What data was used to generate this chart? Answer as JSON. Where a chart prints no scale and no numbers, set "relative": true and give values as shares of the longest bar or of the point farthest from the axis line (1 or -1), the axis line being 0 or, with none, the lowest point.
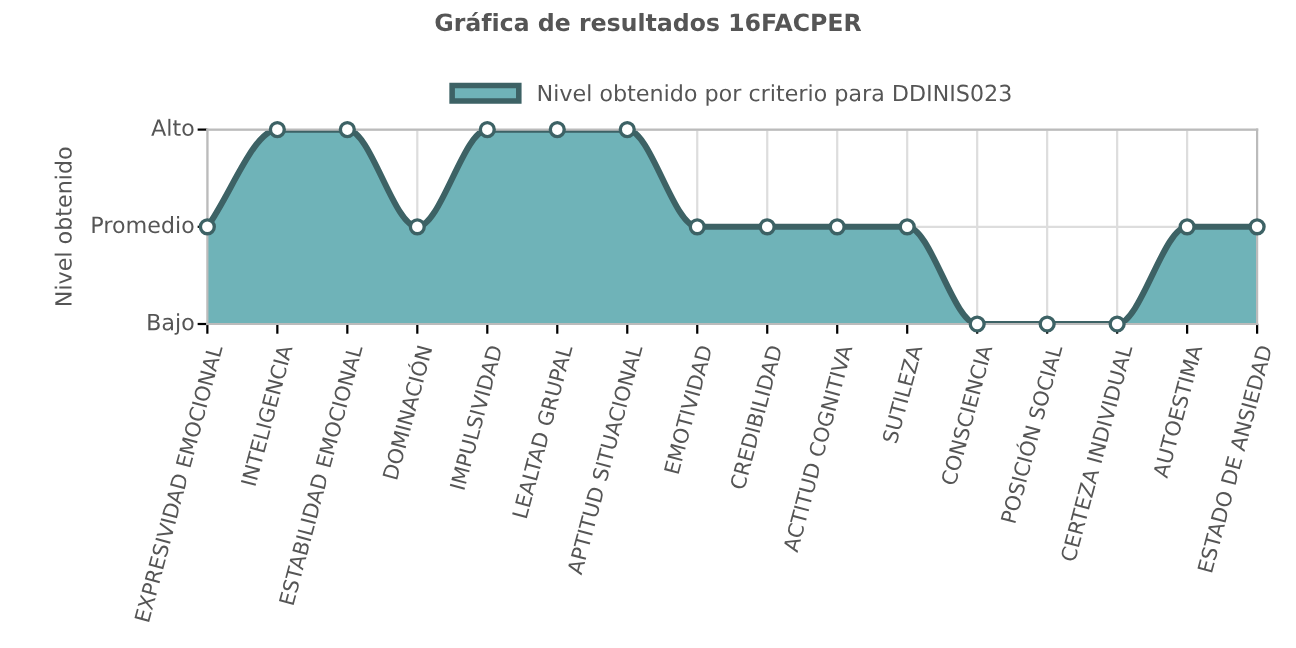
{
  "chart_data": {
    "type": "area",
    "title": "Gráfica de resultados 16FACPER",
    "ylabel": "Nivel obtenido",
    "categories": [
      "EXPRESIVIDAD EMOCIONAL",
      "INTELIGENCIA",
      "ESTABILIDAD EMOCIONAL",
      "DOMINACIÓN",
      "IMPULSIVIDAD",
      "LEALTAD GRUPAL",
      "APTITUD SITUACIONAL",
      "EMOTIVIDAD",
      "CREDIBILIDAD",
      "ACTITUD COGNITIVA",
      "SUTILEZA",
      "CONSCIENCIA",
      "POSICIÓN SOCIAL",
      "CERTEZA INDIVIDUAL",
      "AUTOESTIMA",
      "ESTADO DE ANSIEDAD"
    ],
    "series": [
      {
        "name": "Nivel obtenido por criterio para DDINIS023",
        "color": "#6fb3b8",
        "values": [
          0.5,
          1,
          1,
          0.5,
          1,
          1,
          1,
          0.5,
          0.5,
          0.5,
          0.5,
          0,
          0,
          0,
          0.5,
          0.5
        ]
      }
    ],
    "relative": true,
    "annotations": [
      "Bajo",
      "Promedio",
      "Alto"
    ],
    "grid": true,
    "legend": "top",
    "marker": "circle",
    "line_style": "solid"
  }
}
